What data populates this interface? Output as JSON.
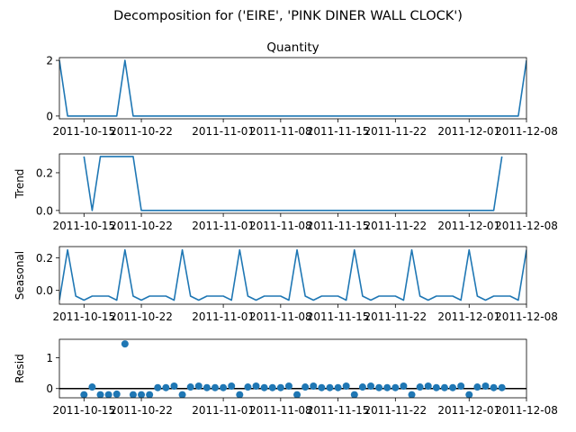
{
  "figure": {
    "suptitle": "Decomposition for ('EIRE', 'PINK DINER WALL CLOCK')",
    "line_color": "#1f77b4"
  },
  "chart_data": [
    {
      "type": "line",
      "title": "Quantity",
      "ylabel": "",
      "xlim": [
        "2011-10-12",
        "2011-12-08"
      ],
      "ylim": [
        -0.1,
        2.1
      ],
      "y_ticks": [
        0,
        2
      ],
      "x_ticks": [
        "2011-10-15",
        "2011-10-22",
        "2011-11-01",
        "2011-11-08",
        "2011-11-15",
        "2011-11-22",
        "2011-12-01",
        "2011-12-08"
      ],
      "series": [
        {
          "x": [
            "2011-10-12",
            "2011-10-13",
            "2011-10-19",
            "2011-10-20",
            "2011-10-21",
            "2011-12-07",
            "2011-12-08"
          ],
          "values": [
            2,
            0,
            0,
            2,
            0,
            0,
            2
          ]
        }
      ]
    },
    {
      "type": "line",
      "title": "",
      "ylabel": "Trend",
      "xlim": [
        "2011-10-12",
        "2011-12-08"
      ],
      "ylim": [
        -0.015,
        0.3
      ],
      "y_ticks": [
        0.0,
        0.2
      ],
      "x_ticks": [
        "2011-10-15",
        "2011-10-22",
        "2011-11-01",
        "2011-11-08",
        "2011-11-15",
        "2011-11-22",
        "2011-12-01",
        "2011-12-08"
      ],
      "series": [
        {
          "x": [
            "2011-10-15",
            "2011-10-16",
            "2011-10-17",
            "2011-10-18",
            "2011-10-19",
            "2011-10-20",
            "2011-10-21",
            "2011-10-22",
            "2011-12-04",
            "2011-12-05"
          ],
          "values": [
            0.286,
            0.0,
            0.286,
            0.286,
            0.286,
            0.286,
            0.286,
            0.0,
            0.0,
            0.286
          ]
        }
      ]
    },
    {
      "type": "line",
      "title": "",
      "ylabel": "Seasonal",
      "xlim": [
        "2011-10-12",
        "2011-12-08"
      ],
      "ylim": [
        -0.085,
        0.27
      ],
      "y_ticks": [
        0.0,
        0.2
      ],
      "x_ticks": [
        "2011-10-15",
        "2011-10-22",
        "2011-11-01",
        "2011-11-08",
        "2011-11-15",
        "2011-11-22",
        "2011-12-01",
        "2011-12-08"
      ],
      "pattern": [
        0.25,
        -0.035,
        -0.06,
        -0.035,
        -0.035,
        -0.035,
        -0.06
      ],
      "start": "2011-10-13",
      "pre_value": -0.06,
      "series": [
        {
          "x_from": "2011-10-12",
          "x_to": "2011-12-08"
        }
      ]
    },
    {
      "type": "scatter",
      "title": "",
      "ylabel": "Resid",
      "xlim": [
        "2011-10-12",
        "2011-12-08"
      ],
      "ylim": [
        -0.3,
        1.6
      ],
      "y_ticks": [
        0,
        1
      ],
      "hline": 0,
      "x_ticks": [
        "2011-10-15",
        "2011-10-22",
        "2011-11-01",
        "2011-11-08",
        "2011-11-15",
        "2011-11-22",
        "2011-12-01",
        "2011-12-08"
      ],
      "series": [
        {
          "x": [
            "2011-10-15",
            "2011-10-16",
            "2011-10-17",
            "2011-10-18",
            "2011-10-19",
            "2011-10-20",
            "2011-10-21",
            "2011-10-22",
            "2011-10-23",
            "2011-10-24",
            "2011-10-25",
            "2011-10-26",
            "2011-10-27",
            "2011-10-28",
            "2011-10-29",
            "2011-10-30",
            "2011-10-31",
            "2011-11-01",
            "2011-11-02",
            "2011-11-03",
            "2011-11-04",
            "2011-11-05",
            "2011-11-06",
            "2011-11-07",
            "2011-11-08",
            "2011-11-09",
            "2011-11-10",
            "2011-11-11",
            "2011-11-12",
            "2011-11-13",
            "2011-11-14",
            "2011-11-15",
            "2011-11-16",
            "2011-11-17",
            "2011-11-18",
            "2011-11-19",
            "2011-11-20",
            "2011-11-21",
            "2011-11-22",
            "2011-11-23",
            "2011-11-24",
            "2011-11-25",
            "2011-11-26",
            "2011-11-27",
            "2011-11-28",
            "2011-11-29",
            "2011-11-30",
            "2011-12-01",
            "2011-12-02",
            "2011-12-03",
            "2011-12-04",
            "2011-12-05"
          ],
          "values": [
            -0.2,
            0.05,
            -0.2,
            -0.2,
            -0.18,
            1.45,
            -0.2,
            -0.2,
            -0.2,
            0.03,
            0.03,
            0.08,
            -0.2,
            0.05,
            0.08,
            0.03,
            0.03,
            0.03,
            0.08,
            -0.2,
            0.05,
            0.08,
            0.03,
            0.03,
            0.03,
            0.08,
            -0.2,
            0.05,
            0.08,
            0.03,
            0.03,
            0.03,
            0.08,
            -0.2,
            0.05,
            0.08,
            0.03,
            0.03,
            0.03,
            0.08,
            -0.2,
            0.05,
            0.08,
            0.03,
            0.03,
            0.03,
            0.08,
            -0.2,
            0.05,
            0.08,
            0.03,
            0.03
          ]
        }
      ]
    }
  ]
}
